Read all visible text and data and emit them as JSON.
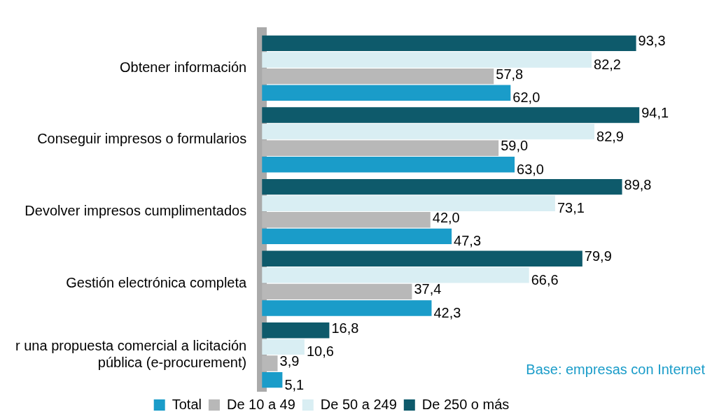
{
  "chart_data": {
    "type": "bar",
    "orientation": "horizontal",
    "categories": [
      "Obtener información",
      "Conseguir impresos o formularios",
      "Devolver impresos cumplimentados",
      "Gestión electrónica completa",
      "r una propuesta comercial a licitación pública (e-procurement)"
    ],
    "series": [
      {
        "name": "Total",
        "color": "#1a9cc9",
        "values": [
          62.0,
          63.0,
          47.3,
          42.3,
          5.1
        ],
        "value_labels": [
          "62,0",
          "63,0",
          "47,3",
          "42,3",
          "5,1"
        ]
      },
      {
        "name": "De 10 a 49",
        "color": "#b8b8b8",
        "values": [
          57.8,
          59.0,
          42.0,
          37.4,
          3.9
        ],
        "value_labels": [
          "57,8",
          "59,0",
          "42,0",
          "37,4",
          "3,9"
        ]
      },
      {
        "name": "De 50 a 249",
        "color": "#d9eef3",
        "values": [
          82.2,
          82.9,
          73.1,
          66.6,
          10.6
        ],
        "value_labels": [
          "82,2",
          "82,9",
          "73,1",
          "66,6",
          "10,6"
        ]
      },
      {
        "name": "De 250 o más",
        "color": "#0e5a6b",
        "values": [
          93.3,
          94.1,
          89.8,
          79.9,
          16.8
        ],
        "value_labels": [
          "93,3",
          "94,1",
          "89,8",
          "79,9",
          "16,8"
        ]
      }
    ],
    "legend": "bottom",
    "grid": false,
    "tick_labels": "y",
    "annotations": [
      "Base: empresas con Internet"
    ]
  }
}
